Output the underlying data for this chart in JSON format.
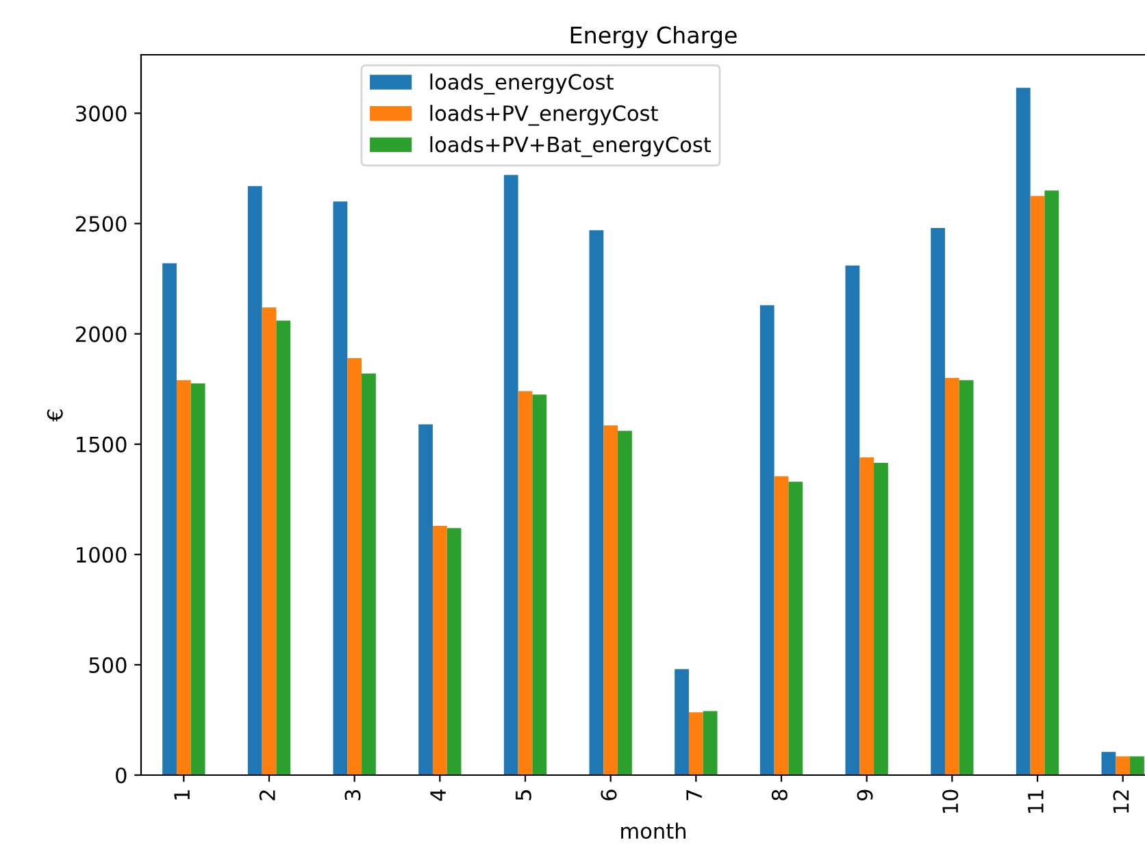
{
  "chart_data": {
    "type": "bar",
    "title": "Energy Charge",
    "xlabel": "month",
    "ylabel": "€",
    "categories": [
      "1",
      "2",
      "3",
      "4",
      "5",
      "6",
      "7",
      "8",
      "9",
      "10",
      "11",
      "12"
    ],
    "series": [
      {
        "name": "loads_energyCost",
        "color": "#1f77b4",
        "values": [
          2320,
          2670,
          2600,
          1590,
          2720,
          2470,
          480,
          2130,
          2310,
          2480,
          3115,
          105
        ]
      },
      {
        "name": "loads+PV_energyCost",
        "color": "#ff7f0e",
        "values": [
          1790,
          2120,
          1890,
          1130,
          1740,
          1585,
          285,
          1355,
          1440,
          1800,
          2625,
          85
        ]
      },
      {
        "name": "loads+PV+Bat_energyCost",
        "color": "#2ca02c",
        "values": [
          1775,
          2060,
          1820,
          1120,
          1725,
          1560,
          290,
          1330,
          1415,
          1790,
          2650,
          85
        ]
      }
    ],
    "ylim": [
      0,
      3265
    ],
    "yticks": [
      0,
      500,
      1000,
      1500,
      2000,
      2500,
      3000
    ],
    "grid": false,
    "legend": "top"
  }
}
